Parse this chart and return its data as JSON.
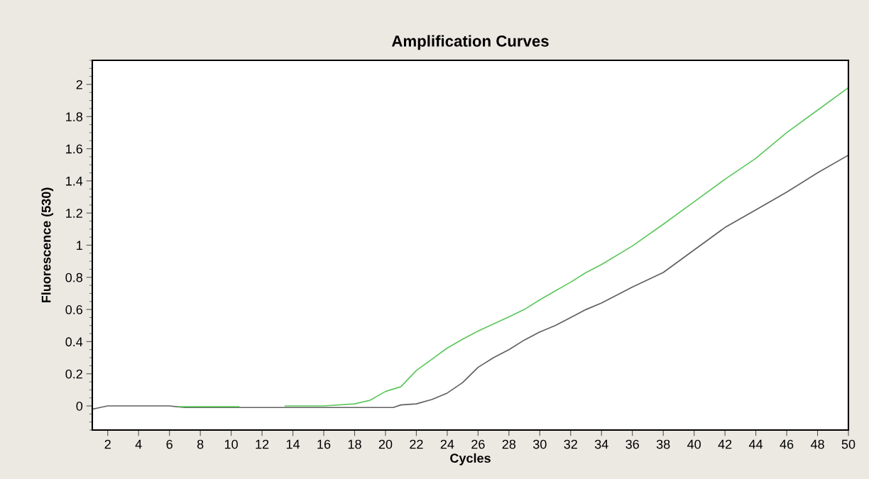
{
  "chart_data": {
    "type": "line",
    "title": "Amplification Curves",
    "xlabel": "Cycles",
    "ylabel": "Fluorescence (530)",
    "xlim": [
      1,
      50
    ],
    "xticks": [
      2,
      4,
      6,
      8,
      10,
      12,
      14,
      16,
      18,
      20,
      22,
      24,
      26,
      28,
      30,
      32,
      34,
      36,
      38,
      40,
      42,
      44,
      46,
      48,
      50
    ],
    "ylim": [
      -0.15,
      2.15
    ],
    "yticks": [
      0,
      0.2,
      0.4,
      0.6,
      0.8,
      1,
      1.2,
      1.4,
      1.6,
      1.8,
      2
    ],
    "grid": false,
    "marker": "none",
    "line_style": "solid",
    "series": [
      {
        "color": "#606060",
        "x": [
          1,
          1.5,
          2,
          4,
          6,
          7,
          10,
          14,
          18,
          20.5,
          21,
          22,
          23,
          24,
          25,
          26,
          27,
          28,
          29,
          30,
          31,
          32,
          33,
          34,
          36,
          38,
          40,
          42,
          44,
          46,
          48,
          50
        ],
        "values": [
          -0.02,
          -0.01,
          0,
          0,
          0,
          -0.01,
          -0.01,
          -0.01,
          -0.01,
          -0.01,
          0.006,
          0.013,
          0.04,
          0.08,
          0.145,
          0.24,
          0.3,
          0.35,
          0.41,
          0.46,
          0.5,
          0.55,
          0.6,
          0.64,
          0.74,
          0.83,
          0.97,
          1.11,
          1.22,
          1.33,
          1.45,
          1.56
        ]
      },
      {
        "color": "#5cc85c",
        "x": [
          6.6,
          8,
          10,
          10.5,
          12,
          13.5,
          14,
          16,
          18,
          19,
          20,
          21,
          22,
          23,
          24,
          25,
          26,
          27,
          28,
          29,
          30,
          31,
          32,
          33,
          34,
          36,
          38,
          40,
          42,
          44,
          46,
          48,
          50
        ],
        "values": [
          -0.005,
          -0.005,
          -0.005,
          -0.005,
          null,
          0,
          0,
          0,
          0.013,
          0.035,
          0.09,
          0.12,
          0.22,
          0.29,
          0.36,
          0.415,
          0.466,
          0.51,
          0.554,
          0.6,
          0.66,
          0.715,
          0.77,
          0.83,
          0.88,
          0.995,
          1.13,
          1.27,
          1.41,
          1.54,
          1.7,
          1.84,
          1.98
        ]
      }
    ]
  }
}
